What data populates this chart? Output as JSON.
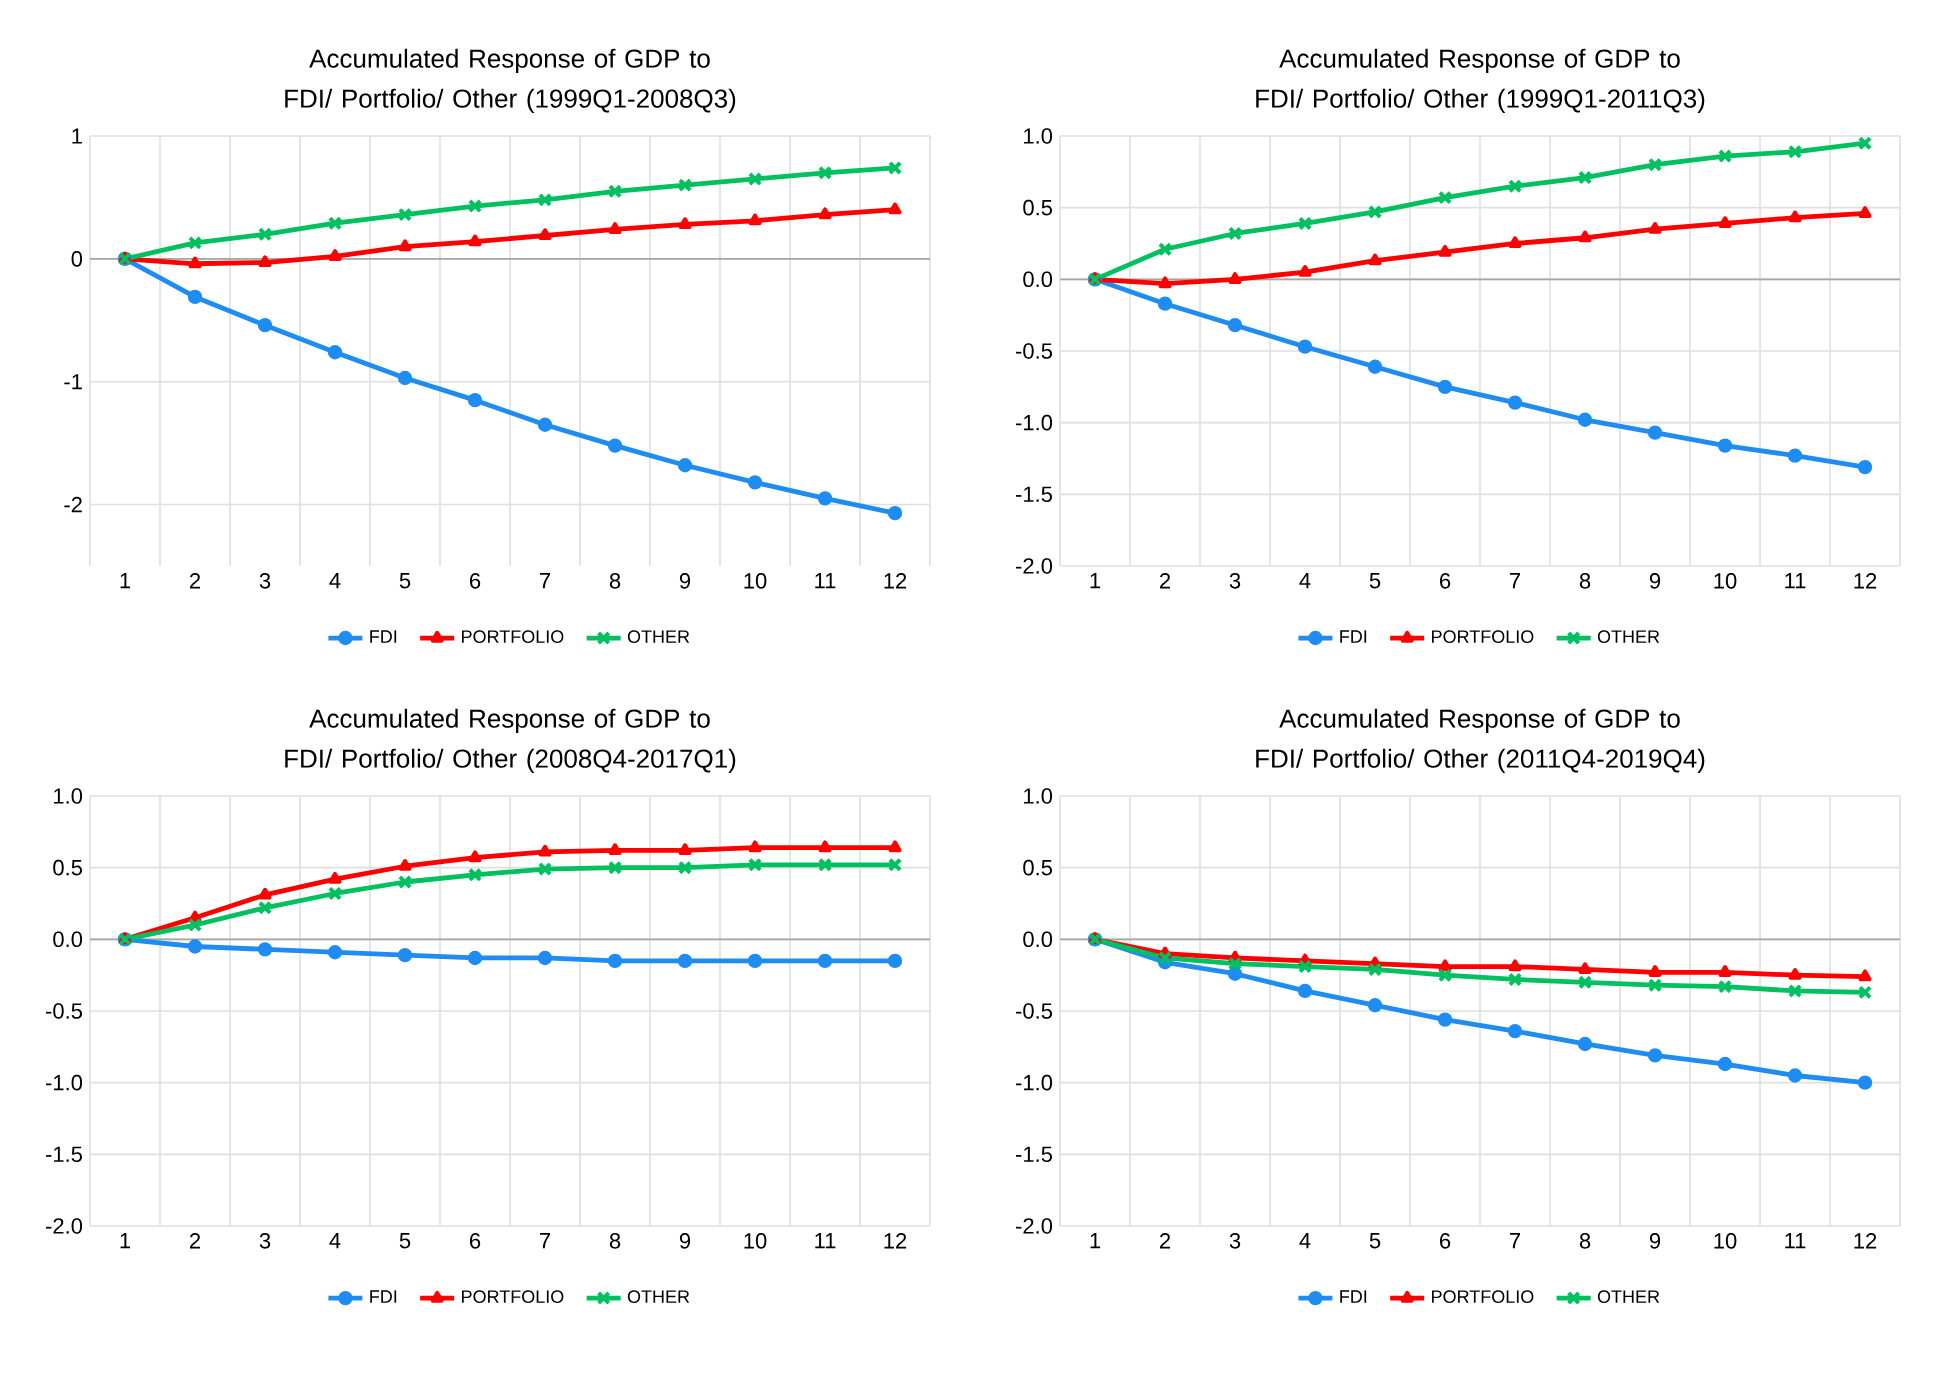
{
  "chart_data": [
    {
      "type": "line",
      "title": "Accumulated Response of GDP to FDI/ Portfolio/ Other (1999Q1-2008Q3)",
      "categories": [
        "1",
        "2",
        "3",
        "4",
        "5",
        "6",
        "7",
        "8",
        "9",
        "10",
        "11",
        "12"
      ],
      "ylim": [
        -2.5,
        1
      ],
      "yticks": [
        1,
        0,
        -1,
        -2
      ],
      "grid": true,
      "legend": "bottom",
      "series": [
        {
          "name": "FDI",
          "color": "#1e8cf0",
          "marker": "circle",
          "values": [
            0,
            -0.31,
            -0.54,
            -0.76,
            -0.97,
            -1.15,
            -1.35,
            -1.52,
            -1.68,
            -1.82,
            -1.95,
            -2.07
          ]
        },
        {
          "name": "PORTFOLIO",
          "color": "#ff0000",
          "marker": "triangle",
          "values": [
            0,
            -0.04,
            -0.03,
            0.02,
            0.1,
            0.14,
            0.19,
            0.24,
            0.28,
            0.31,
            0.36,
            0.4
          ]
        },
        {
          "name": "OTHER",
          "color": "#00c060",
          "marker": "cross",
          "values": [
            0,
            0.13,
            0.2,
            0.29,
            0.36,
            0.43,
            0.48,
            0.55,
            0.6,
            0.65,
            0.7,
            0.74
          ]
        }
      ]
    },
    {
      "type": "line",
      "title": "Accumulated Response of GDP to FDI/ Portfolio/ Other (1999Q1-2011Q3)",
      "categories": [
        "1",
        "2",
        "3",
        "4",
        "5",
        "6",
        "7",
        "8",
        "9",
        "10",
        "11",
        "12"
      ],
      "ylim": [
        -2,
        1
      ],
      "yticks": [
        {
          "value": 1,
          "label": "1.0"
        },
        0.5,
        {
          "value": 0,
          "label": "0.0"
        },
        -0.5,
        {
          "value": -1,
          "label": "-1.0"
        },
        -1.5,
        {
          "value": -2,
          "label": "-2.0"
        }
      ],
      "grid": true,
      "legend": "bottom",
      "series": [
        {
          "name": "FDI",
          "color": "#1e8cf0",
          "marker": "circle",
          "values": [
            0,
            -0.17,
            -0.32,
            -0.47,
            -0.61,
            -0.75,
            -0.86,
            -0.98,
            -1.07,
            -1.16,
            -1.23,
            -1.31
          ]
        },
        {
          "name": "PORTFOLIO",
          "color": "#ff0000",
          "marker": "triangle",
          "values": [
            0,
            -0.03,
            0.0,
            0.05,
            0.13,
            0.19,
            0.25,
            0.29,
            0.35,
            0.39,
            0.43,
            0.46
          ]
        },
        {
          "name": "OTHER",
          "color": "#00c060",
          "marker": "cross",
          "values": [
            0,
            0.21,
            0.32,
            0.39,
            0.47,
            0.57,
            0.65,
            0.71,
            0.8,
            0.86,
            0.89,
            0.95
          ]
        }
      ]
    },
    {
      "type": "line",
      "title": "Accumulated Response of GDP to FDI/ Portfolio/ Other (2008Q4-2017Q1)",
      "categories": [
        "1",
        "2",
        "3",
        "4",
        "5",
        "6",
        "7",
        "8",
        "9",
        "10",
        "11",
        "12"
      ],
      "ylim": [
        -2,
        1
      ],
      "yticks": [
        {
          "value": 1,
          "label": "1.0"
        },
        0.5,
        {
          "value": 0,
          "label": "0.0"
        },
        -0.5,
        {
          "value": -1,
          "label": "-1.0"
        },
        -1.5,
        {
          "value": -2,
          "label": "-2.0"
        }
      ],
      "grid": true,
      "legend": "bottom",
      "series": [
        {
          "name": "FDI",
          "color": "#1e8cf0",
          "marker": "circle",
          "values": [
            0,
            -0.05,
            -0.07,
            -0.09,
            -0.11,
            -0.13,
            -0.13,
            -0.15,
            -0.15,
            -0.15,
            -0.15,
            -0.15
          ]
        },
        {
          "name": "PORTFOLIO",
          "color": "#ff0000",
          "marker": "triangle",
          "values": [
            0,
            0.15,
            0.31,
            0.42,
            0.51,
            0.57,
            0.61,
            0.62,
            0.62,
            0.64,
            0.64,
            0.64
          ]
        },
        {
          "name": "OTHER",
          "color": "#00c060",
          "marker": "cross",
          "values": [
            0,
            0.1,
            0.22,
            0.32,
            0.4,
            0.45,
            0.49,
            0.5,
            0.5,
            0.52,
            0.52,
            0.52
          ]
        }
      ]
    },
    {
      "type": "line",
      "title": "Accumulated Response of GDP to FDI/ Portfolio/ Other (2011Q4-2019Q4)",
      "categories": [
        "1",
        "2",
        "3",
        "4",
        "5",
        "6",
        "7",
        "8",
        "9",
        "10",
        "11",
        "12"
      ],
      "ylim": [
        -2,
        1
      ],
      "yticks": [
        {
          "value": 1,
          "label": "1.0"
        },
        0.5,
        {
          "value": 0,
          "label": "0.0"
        },
        -0.5,
        {
          "value": -1,
          "label": "-1.0"
        },
        -1.5,
        {
          "value": -2,
          "label": "-2.0"
        }
      ],
      "grid": true,
      "legend": "bottom",
      "series": [
        {
          "name": "FDI",
          "color": "#1e8cf0",
          "marker": "circle",
          "values": [
            0,
            -0.16,
            -0.24,
            -0.36,
            -0.46,
            -0.56,
            -0.64,
            -0.73,
            -0.81,
            -0.87,
            -0.95,
            -1.0
          ]
        },
        {
          "name": "PORTFOLIO",
          "color": "#ff0000",
          "marker": "triangle",
          "values": [
            0,
            -0.1,
            -0.13,
            -0.15,
            -0.17,
            -0.19,
            -0.19,
            -0.21,
            -0.23,
            -0.23,
            -0.25,
            -0.26
          ]
        },
        {
          "name": "OTHER",
          "color": "#00c060",
          "marker": "cross",
          "values": [
            0,
            -0.13,
            -0.17,
            -0.19,
            -0.21,
            -0.25,
            -0.28,
            -0.3,
            -0.32,
            -0.33,
            -0.36,
            -0.37
          ]
        }
      ]
    }
  ]
}
